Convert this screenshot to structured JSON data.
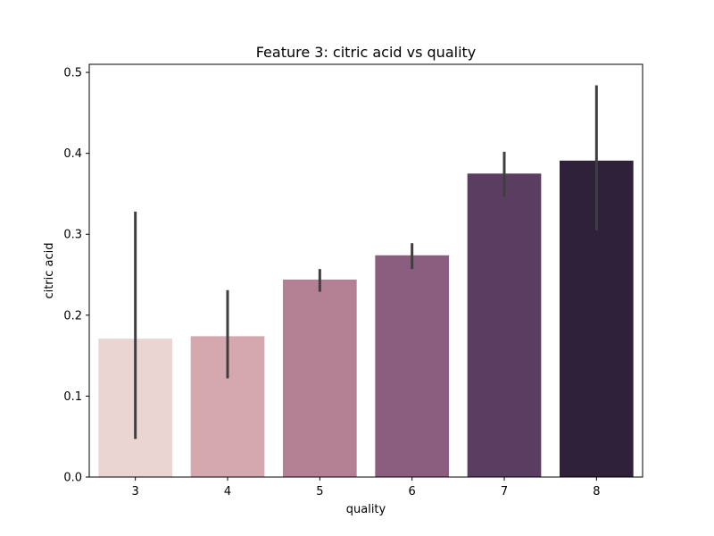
{
  "chart_data": {
    "type": "bar",
    "title": "Feature 3: citric acid vs quality",
    "xlabel": "quality",
    "ylabel": "citric acid",
    "categories": [
      "3",
      "4",
      "5",
      "6",
      "7",
      "8"
    ],
    "values": [
      0.171,
      0.174,
      0.244,
      0.274,
      0.375,
      0.391
    ],
    "error_low": [
      0.047,
      0.122,
      0.229,
      0.257,
      0.346,
      0.305
    ],
    "error_high": [
      0.328,
      0.231,
      0.257,
      0.289,
      0.402,
      0.484
    ],
    "ylim": [
      0,
      0.51
    ],
    "yticks": [
      "0.0",
      "0.1",
      "0.2",
      "0.3",
      "0.4",
      "0.5"
    ],
    "colors": [
      "#ead5d2",
      "#d4a8ae",
      "#b48194",
      "#8b5e80",
      "#5c3d62",
      "#2e2139"
    ],
    "errorbar_color": "#3f3f3f",
    "grid": false,
    "legend": "none"
  }
}
